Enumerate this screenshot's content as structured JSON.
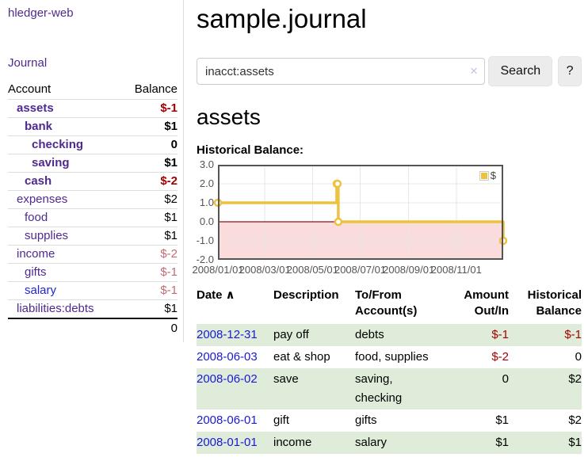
{
  "app": {
    "brand": "hledger-web",
    "journal_label": "Journal"
  },
  "sidebar": {
    "col_account": "Account",
    "col_balance": "Balance",
    "accounts": [
      {
        "name": "assets",
        "depth": 1,
        "bold": true,
        "balance": "$-1"
      },
      {
        "name": "bank",
        "depth": 2,
        "bold": true,
        "balance": "$1"
      },
      {
        "name": "checking",
        "depth": 3,
        "bold": true,
        "balance": "0"
      },
      {
        "name": "saving",
        "depth": 3,
        "bold": true,
        "balance": "$1"
      },
      {
        "name": "cash",
        "depth": 2,
        "bold": true,
        "balance": "$-2"
      },
      {
        "name": "expenses",
        "depth": 1,
        "bold": false,
        "balance": "$2"
      },
      {
        "name": "food",
        "depth": 2,
        "bold": false,
        "balance": "$1"
      },
      {
        "name": "supplies",
        "depth": 2,
        "bold": false,
        "balance": "$1"
      },
      {
        "name": "income",
        "depth": 1,
        "bold": false,
        "balance": "$-2"
      },
      {
        "name": "gifts",
        "depth": 2,
        "bold": false,
        "balance": "$-1"
      },
      {
        "name": "salary",
        "depth": 2,
        "bold": false,
        "balance": "$-1",
        "blue": true
      },
      {
        "name": "liabilities:debts",
        "depth": 1,
        "bold": false,
        "balance": "$1"
      }
    ],
    "total": "0"
  },
  "header": {
    "title": "sample.journal"
  },
  "search": {
    "value": "inacct:assets",
    "clear_icon": "✕",
    "button_label": "Search",
    "help_label": "?"
  },
  "account_page": {
    "heading": "assets",
    "chart_label": "Historical Balance:"
  },
  "chart_data": {
    "type": "line",
    "step": true,
    "legend": "$",
    "x_range": [
      "2008-01-01",
      "2008-12-31"
    ],
    "ylim": [
      -2,
      3
    ],
    "yticks": [
      "3.0",
      "2.0",
      "1.0",
      "0.0",
      "-1.0",
      "-2.0"
    ],
    "xticks": [
      "2008/01/01",
      "2008/03/01",
      "2008/05/01",
      "2008/07/01",
      "2008/09/01",
      "2008/11/01"
    ],
    "series": [
      {
        "name": "$",
        "color": "#edc240",
        "points": [
          {
            "x": "2008-01-01",
            "y": 1
          },
          {
            "x": "2008-06-01",
            "y": 2
          },
          {
            "x": "2008-06-02",
            "y": 2
          },
          {
            "x": "2008-06-03",
            "y": 0
          },
          {
            "x": "2008-12-31",
            "y": -1
          }
        ]
      }
    ],
    "colors": {
      "negative_region": "#fbdcdc",
      "zero_line": "#8b1414",
      "grid": "#e7e7e7",
      "border": "#545454",
      "tick_text": "#545454"
    }
  },
  "register": {
    "columns": {
      "date": "Date",
      "description": "Description",
      "accounts": "To/From Account(s)",
      "amount": "Amount Out/In",
      "balance": "Historical Balance"
    },
    "sort_icon": "∧",
    "rows": [
      {
        "date": "2008-12-31",
        "description": "pay off",
        "accounts": "debts",
        "amount": "$-1",
        "balance": "$-1"
      },
      {
        "date": "2008-06-03",
        "description": "eat & shop",
        "accounts": "food, supplies",
        "amount": "$-2",
        "balance": "0"
      },
      {
        "date": "2008-06-02",
        "description": "save",
        "accounts": "saving, checking",
        "amount": "0",
        "balance": "$2"
      },
      {
        "date": "2008-06-01",
        "description": "gift",
        "accounts": "gifts",
        "amount": "$1",
        "balance": "$2"
      },
      {
        "date": "2008-01-01",
        "description": "income",
        "accounts": "salary",
        "amount": "$1",
        "balance": "$1"
      }
    ]
  }
}
